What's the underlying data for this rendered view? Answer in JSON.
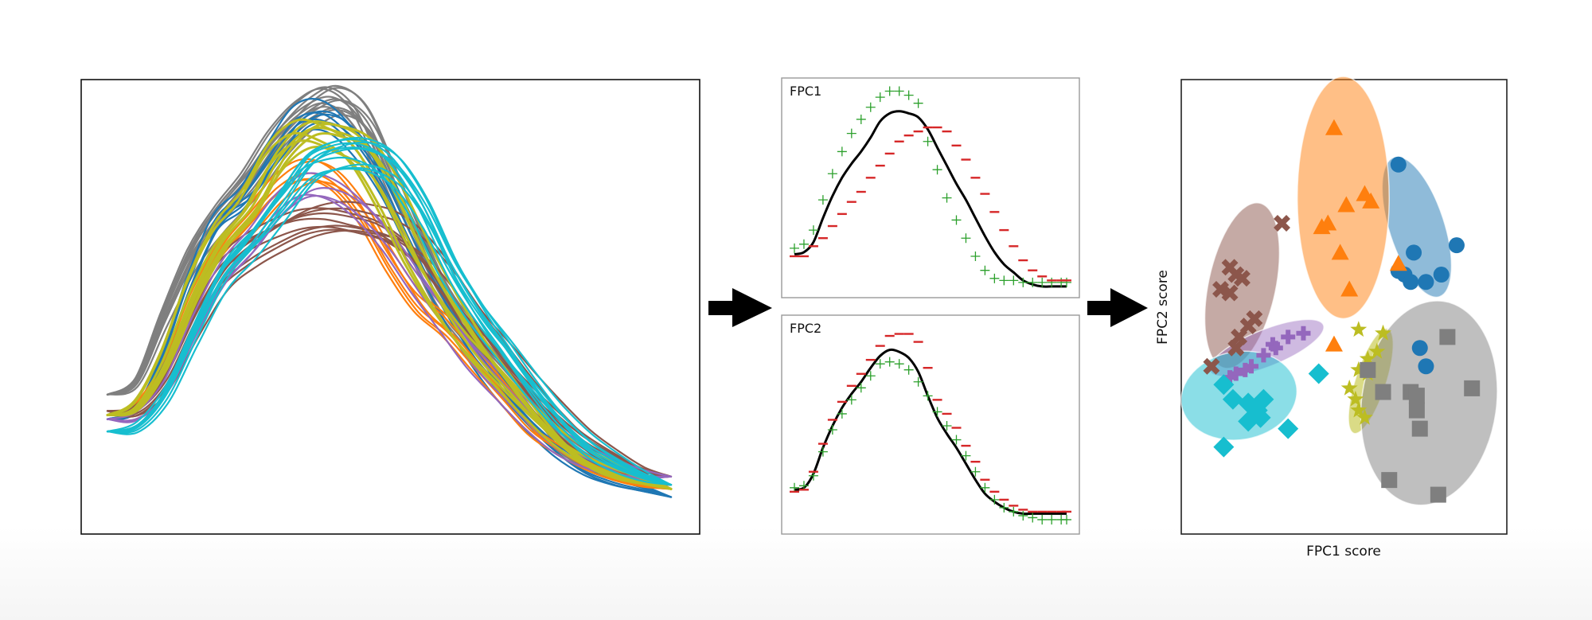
{
  "figure": {
    "arrow_color": "#000000",
    "panels": {
      "curves": {
        "name": "raw-curves-panel"
      },
      "fpc1": {
        "title": "FPC1"
      },
      "fpc2": {
        "title": "FPC2"
      },
      "scatter": {
        "xlabel": "FPC1 score",
        "ylabel": "FPC2 score"
      }
    }
  },
  "chart_data": [
    {
      "type": "line",
      "title": "",
      "description": "Overlay of many smooth unimodal curves, colored by cluster",
      "xlabel": "",
      "ylabel": "",
      "grid": false,
      "x": [
        0,
        0.05,
        0.1,
        0.15,
        0.2,
        0.25,
        0.3,
        0.35,
        0.4,
        0.45,
        0.5,
        0.55,
        0.6,
        0.65,
        0.7,
        0.75,
        0.8,
        0.85,
        0.9,
        0.95,
        1.0
      ],
      "series": [
        {
          "name": "blue",
          "color": "#1f77b4",
          "count": 7,
          "values": [
            0.22,
            0.24,
            0.36,
            0.55,
            0.7,
            0.76,
            0.86,
            0.95,
            0.96,
            0.9,
            0.8,
            0.66,
            0.52,
            0.4,
            0.3,
            0.22,
            0.15,
            0.1,
            0.07,
            0.05,
            0.03
          ]
        },
        {
          "name": "orange",
          "color": "#ff7f0e",
          "count": 6,
          "values": [
            0.23,
            0.25,
            0.34,
            0.5,
            0.62,
            0.7,
            0.78,
            0.82,
            0.8,
            0.72,
            0.6,
            0.5,
            0.44,
            0.36,
            0.28,
            0.2,
            0.15,
            0.11,
            0.08,
            0.06,
            0.05
          ]
        },
        {
          "name": "brown",
          "color": "#8c564b",
          "count": 9,
          "values": [
            0.24,
            0.24,
            0.31,
            0.45,
            0.57,
            0.63,
            0.67,
            0.7,
            0.71,
            0.7,
            0.68,
            0.63,
            0.55,
            0.45,
            0.37,
            0.29,
            0.22,
            0.16,
            0.12,
            0.09,
            0.08
          ]
        },
        {
          "name": "purple",
          "color": "#9467bd",
          "count": 4,
          "values": [
            0.22,
            0.23,
            0.3,
            0.45,
            0.58,
            0.66,
            0.75,
            0.8,
            0.79,
            0.74,
            0.66,
            0.56,
            0.47,
            0.38,
            0.31,
            0.24,
            0.18,
            0.14,
            0.11,
            0.09,
            0.08
          ]
        },
        {
          "name": "gray",
          "color": "#7f7f7f",
          "count": 12,
          "values": [
            0.28,
            0.31,
            0.47,
            0.62,
            0.72,
            0.8,
            0.9,
            0.97,
            1.0,
            0.95,
            0.8,
            0.64,
            0.5,
            0.41,
            0.33,
            0.25,
            0.17,
            0.12,
            0.09,
            0.07,
            0.06
          ]
        },
        {
          "name": "olive",
          "color": "#bcbd22",
          "count": 8,
          "values": [
            0.23,
            0.25,
            0.36,
            0.53,
            0.66,
            0.74,
            0.86,
            0.92,
            0.91,
            0.87,
            0.76,
            0.62,
            0.5,
            0.4,
            0.32,
            0.24,
            0.17,
            0.12,
            0.09,
            0.07,
            0.05
          ]
        },
        {
          "name": "cyan",
          "color": "#17becf",
          "count": 10,
          "values": [
            0.19,
            0.2,
            0.28,
            0.43,
            0.57,
            0.65,
            0.74,
            0.83,
            0.86,
            0.86,
            0.82,
            0.72,
            0.58,
            0.47,
            0.38,
            0.29,
            0.21,
            0.15,
            0.11,
            0.08,
            0.06
          ]
        }
      ]
    },
    {
      "type": "line",
      "title": "FPC1",
      "description": "Mean curve (black) with mean ± FPC1 perturbations (+ green, − red)",
      "x": [
        0.0,
        0.035,
        0.07,
        0.105,
        0.14,
        0.175,
        0.21,
        0.245,
        0.28,
        0.315,
        0.35,
        0.385,
        0.42,
        0.455,
        0.49,
        0.525,
        0.56,
        0.595,
        0.63,
        0.665,
        0.7,
        0.735,
        0.77,
        0.805,
        0.84,
        0.875,
        0.91,
        0.945,
        0.98,
        1.0
      ],
      "series": [
        {
          "name": "mean",
          "color": "#000000",
          "marker": "line",
          "values": [
            0.18,
            0.19,
            0.24,
            0.36,
            0.47,
            0.56,
            0.63,
            0.69,
            0.76,
            0.84,
            0.88,
            0.89,
            0.88,
            0.86,
            0.8,
            0.71,
            0.62,
            0.53,
            0.45,
            0.36,
            0.27,
            0.19,
            0.13,
            0.09,
            0.05,
            0.03,
            0.02,
            0.02,
            0.02,
            0.02
          ]
        },
        {
          "name": "mean+FPC1",
          "color": "#2ca02c",
          "marker": "+",
          "values": [
            0.21,
            0.23,
            0.3,
            0.45,
            0.58,
            0.69,
            0.78,
            0.85,
            0.91,
            0.96,
            0.99,
            0.99,
            0.97,
            0.93,
            0.74,
            0.6,
            0.46,
            0.35,
            0.26,
            0.17,
            0.1,
            0.06,
            0.05,
            0.05,
            0.04,
            0.04,
            0.04,
            0.04,
            0.04,
            0.04
          ]
        },
        {
          "name": "mean-FPC1",
          "color": "#d62728",
          "marker": "-",
          "values": [
            0.17,
            0.17,
            0.22,
            0.26,
            0.32,
            0.38,
            0.44,
            0.49,
            0.56,
            0.62,
            0.68,
            0.74,
            0.77,
            0.79,
            0.81,
            0.81,
            0.79,
            0.72,
            0.65,
            0.56,
            0.48,
            0.39,
            0.3,
            0.22,
            0.15,
            0.1,
            0.07,
            0.05,
            0.05,
            0.05
          ]
        }
      ]
    },
    {
      "type": "line",
      "title": "FPC2",
      "description": "Mean curve (black) with mean ± FPC2 perturbations (+ green, − red)",
      "x": [
        0.0,
        0.035,
        0.07,
        0.105,
        0.14,
        0.175,
        0.21,
        0.245,
        0.28,
        0.315,
        0.35,
        0.385,
        0.42,
        0.455,
        0.49,
        0.525,
        0.56,
        0.595,
        0.63,
        0.665,
        0.7,
        0.735,
        0.77,
        0.805,
        0.84,
        0.875,
        0.91,
        0.945,
        0.98,
        1.0
      ],
      "series": [
        {
          "name": "mean",
          "color": "#000000",
          "marker": "line",
          "values": [
            0.19,
            0.2,
            0.27,
            0.4,
            0.51,
            0.6,
            0.67,
            0.73,
            0.8,
            0.86,
            0.89,
            0.88,
            0.85,
            0.78,
            0.66,
            0.55,
            0.47,
            0.4,
            0.32,
            0.24,
            0.17,
            0.13,
            0.1,
            0.08,
            0.07,
            0.07,
            0.07,
            0.07,
            0.07,
            0.07
          ]
        },
        {
          "name": "mean+FPC2",
          "color": "#2ca02c",
          "marker": "+",
          "values": [
            0.2,
            0.21,
            0.26,
            0.38,
            0.49,
            0.57,
            0.64,
            0.7,
            0.76,
            0.82,
            0.83,
            0.82,
            0.79,
            0.73,
            0.66,
            0.58,
            0.51,
            0.44,
            0.36,
            0.28,
            0.2,
            0.14,
            0.1,
            0.08,
            0.06,
            0.05,
            0.04,
            0.04,
            0.04,
            0.04
          ]
        },
        {
          "name": "mean-FPC2",
          "color": "#d62728",
          "marker": "-",
          "values": [
            0.18,
            0.19,
            0.28,
            0.42,
            0.54,
            0.63,
            0.71,
            0.77,
            0.84,
            0.91,
            0.96,
            0.97,
            0.97,
            0.93,
            0.8,
            0.64,
            0.57,
            0.5,
            0.41,
            0.33,
            0.24,
            0.18,
            0.14,
            0.11,
            0.09,
            0.08,
            0.08,
            0.08,
            0.08,
            0.08
          ]
        }
      ]
    },
    {
      "type": "scatter",
      "title": "",
      "xlabel": "FPC1 score",
      "ylabel": "FPC2 score",
      "grid": false,
      "ticks": "none",
      "series": [
        {
          "name": "blue-circles",
          "color": "#1f77b4",
          "marker": "circle",
          "ellipse": {
            "cx": 0.74,
            "cy": 0.62,
            "rx": 0.09,
            "ry": 0.2,
            "angle": -18
          },
          "points": [
            [
              0.68,
              0.79
            ],
            [
              0.73,
              0.55
            ],
            [
              0.87,
              0.57
            ],
            [
              0.68,
              0.5
            ],
            [
              0.7,
              0.49
            ],
            [
              0.72,
              0.47
            ],
            [
              0.77,
              0.47
            ],
            [
              0.82,
              0.49
            ],
            [
              0.75,
              0.29
            ],
            [
              0.77,
              0.24
            ]
          ]
        },
        {
          "name": "orange-triangles",
          "color": "#ff7f0e",
          "marker": "triangle",
          "ellipse": {
            "cx": 0.5,
            "cy": 0.7,
            "rx": 0.15,
            "ry": 0.33,
            "angle": 0
          },
          "points": [
            [
              0.47,
              0.89
            ],
            [
              0.57,
              0.71
            ],
            [
              0.59,
              0.69
            ],
            [
              0.51,
              0.68
            ],
            [
              0.43,
              0.62
            ],
            [
              0.45,
              0.63
            ],
            [
              0.49,
              0.55
            ],
            [
              0.52,
              0.45
            ],
            [
              0.47,
              0.3
            ],
            [
              0.68,
              0.52
            ]
          ]
        },
        {
          "name": "brown-crosses",
          "color": "#8c564b",
          "marker": "x",
          "ellipse": {
            "cx": 0.17,
            "cy": 0.46,
            "rx": 0.11,
            "ry": 0.23,
            "angle": 12
          },
          "points": [
            [
              0.3,
              0.63
            ],
            [
              0.13,
              0.51
            ],
            [
              0.15,
              0.49
            ],
            [
              0.17,
              0.48
            ],
            [
              0.1,
              0.45
            ],
            [
              0.13,
              0.44
            ],
            [
              0.21,
              0.37
            ],
            [
              0.19,
              0.35
            ],
            [
              0.16,
              0.32
            ],
            [
              0.15,
              0.29
            ],
            [
              0.07,
              0.24
            ]
          ]
        },
        {
          "name": "purple-plus",
          "color": "#9467bd",
          "marker": "plus",
          "ellipse": {
            "cx": 0.25,
            "cy": 0.29,
            "rx": 0.2,
            "ry": 0.05,
            "angle": -22
          },
          "points": [
            [
              0.37,
              0.33
            ],
            [
              0.32,
              0.32
            ],
            [
              0.27,
              0.3
            ],
            [
              0.28,
              0.29
            ],
            [
              0.24,
              0.27
            ],
            [
              0.2,
              0.24
            ],
            [
              0.18,
              0.23
            ],
            [
              0.15,
              0.22
            ],
            [
              0.13,
              0.21
            ]
          ]
        },
        {
          "name": "cyan-diamonds",
          "color": "#17becf",
          "marker": "diamond",
          "ellipse": {
            "cx": 0.16,
            "cy": 0.16,
            "rx": 0.19,
            "ry": 0.12,
            "angle": -10
          },
          "points": [
            [
              0.42,
              0.22
            ],
            [
              0.11,
              0.19
            ],
            [
              0.14,
              0.15
            ],
            [
              0.19,
              0.14
            ],
            [
              0.24,
              0.15
            ],
            [
              0.22,
              0.12
            ],
            [
              0.23,
              0.1
            ],
            [
              0.19,
              0.09
            ],
            [
              0.32,
              0.07
            ],
            [
              0.11,
              0.02
            ]
          ]
        },
        {
          "name": "olive-stars",
          "color": "#bcbd22",
          "marker": "star",
          "ellipse": {
            "cx": 0.59,
            "cy": 0.2,
            "rx": 0.05,
            "ry": 0.15,
            "angle": 18
          },
          "points": [
            [
              0.55,
              0.34
            ],
            [
              0.63,
              0.33
            ],
            [
              0.61,
              0.28
            ],
            [
              0.58,
              0.26
            ],
            [
              0.55,
              0.23
            ],
            [
              0.58,
              0.22
            ],
            [
              0.54,
              0.15
            ],
            [
              0.55,
              0.12
            ],
            [
              0.57,
              0.1
            ],
            [
              0.52,
              0.18
            ]
          ]
        },
        {
          "name": "gray-squares",
          "color": "#7f7f7f",
          "marker": "square",
          "ellipse": {
            "cx": 0.78,
            "cy": 0.14,
            "rx": 0.22,
            "ry": 0.28,
            "angle": 8
          },
          "points": [
            [
              0.84,
              0.32
            ],
            [
              0.58,
              0.23
            ],
            [
              0.63,
              0.17
            ],
            [
              0.72,
              0.17
            ],
            [
              0.74,
              0.16
            ],
            [
              0.92,
              0.18
            ],
            [
              0.74,
              0.12
            ],
            [
              0.75,
              0.07
            ],
            [
              0.65,
              -0.07
            ],
            [
              0.81,
              -0.11
            ]
          ]
        }
      ]
    }
  ]
}
